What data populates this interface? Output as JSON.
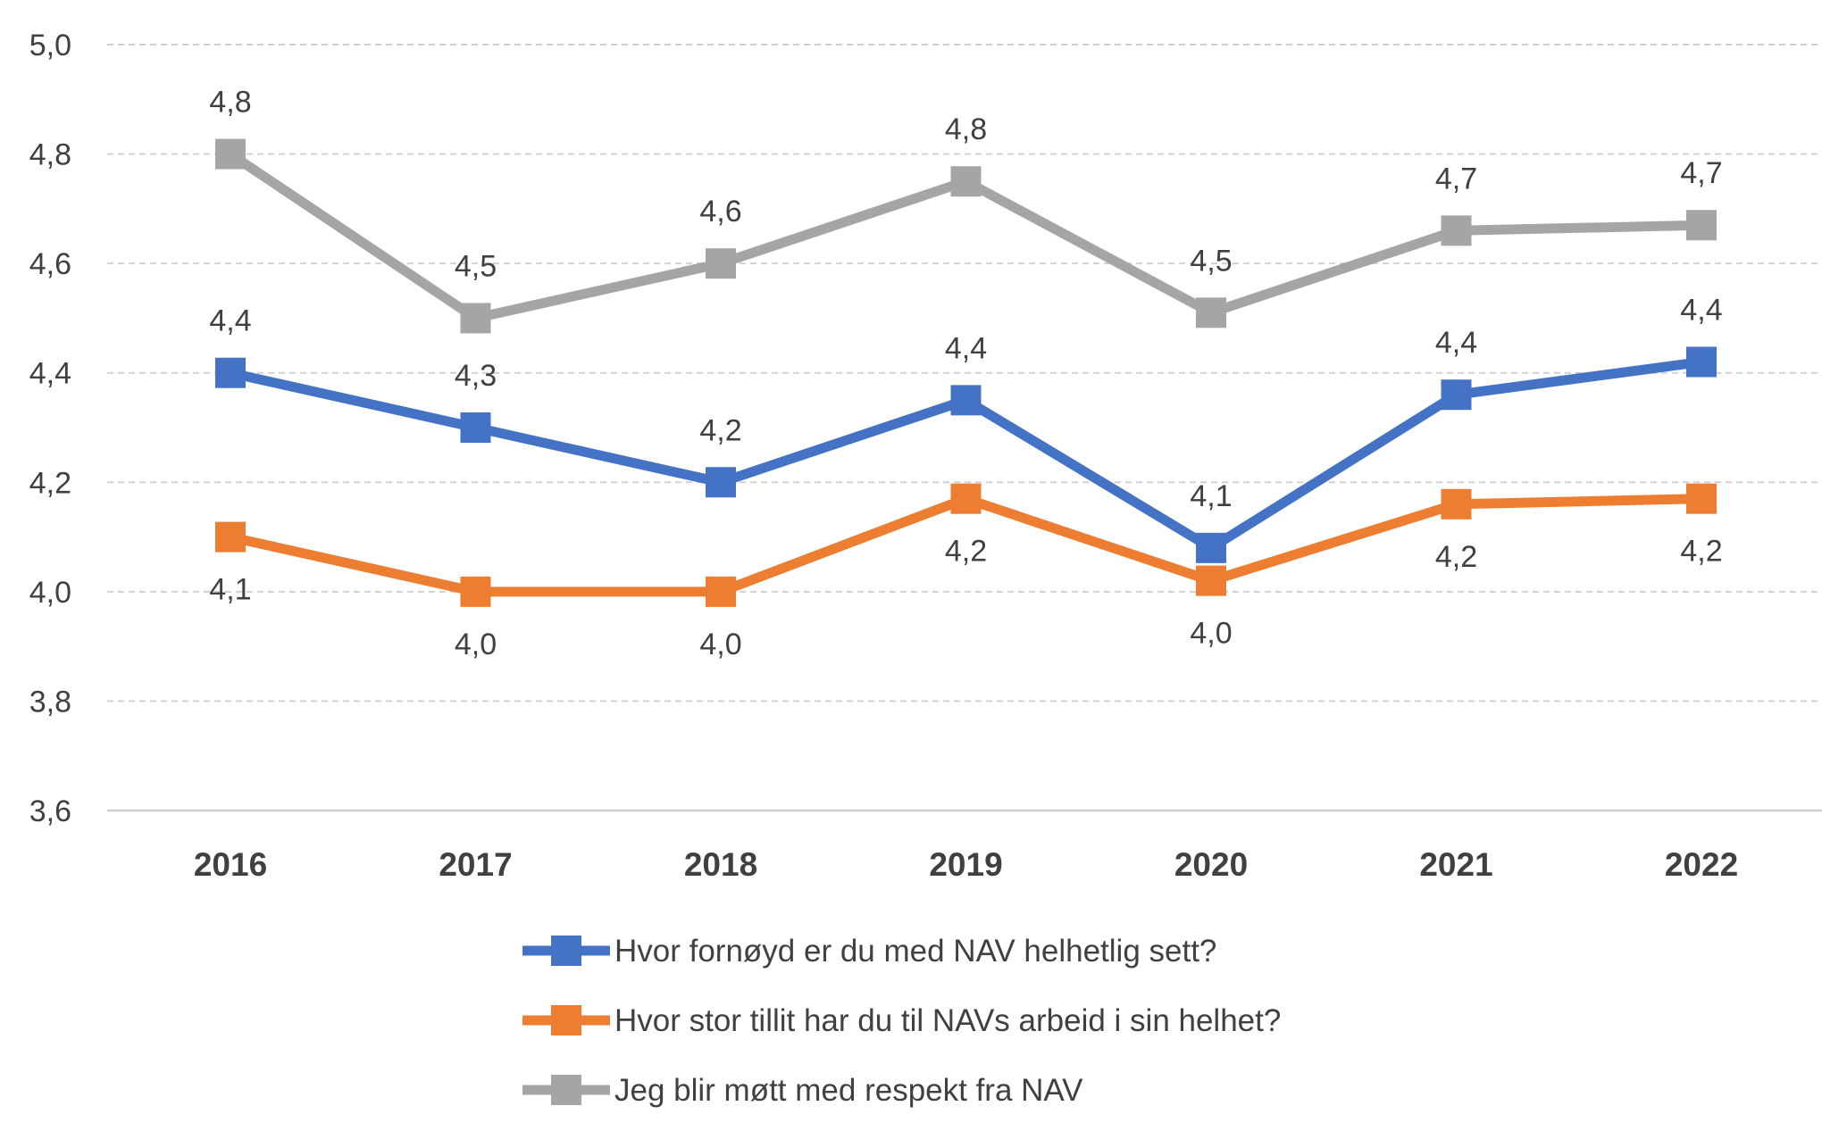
{
  "chart_data": {
    "type": "line",
    "title": "",
    "xlabel": "",
    "ylabel": "",
    "ylim": [
      3.6,
      5.0
    ],
    "y_step": 0.2,
    "y_ticks": [
      "3,6",
      "3,8",
      "4,0",
      "4,2",
      "4,4",
      "4,6",
      "4,8",
      "5,0"
    ],
    "categories": [
      "2016",
      "2017",
      "2018",
      "2019",
      "2020",
      "2021",
      "2022"
    ],
    "grid": true,
    "legend_position": "bottom",
    "series": [
      {
        "name": "Hvor fornøyd er du med NAV helhetlig sett?",
        "color": "#4472C4",
        "values": [
          4.4,
          4.3,
          4.2,
          4.35,
          4.08,
          4.36,
          4.42
        ],
        "labels": [
          "4,4",
          "4,3",
          "4,2",
          "4,4",
          "4,1",
          "4,4",
          "4,4"
        ],
        "label_position": "above"
      },
      {
        "name": "Hvor stor tillit har du til NAVs arbeid i sin helhet?",
        "color": "#ED7D31",
        "values": [
          4.1,
          4.0,
          4.0,
          4.17,
          4.02,
          4.16,
          4.17
        ],
        "labels": [
          "4,1",
          "4,0",
          "4,0",
          "4,2",
          "4,0",
          "4,2",
          "4,2"
        ],
        "label_position": "below"
      },
      {
        "name": "Jeg blir møtt med respekt fra NAV",
        "color": "#A5A5A5",
        "values": [
          4.8,
          4.5,
          4.6,
          4.75,
          4.51,
          4.66,
          4.67
        ],
        "labels": [
          "4,8",
          "4,5",
          "4,6",
          "4,8",
          "4,5",
          "4,7",
          "4,7"
        ],
        "label_position": "above"
      }
    ]
  }
}
